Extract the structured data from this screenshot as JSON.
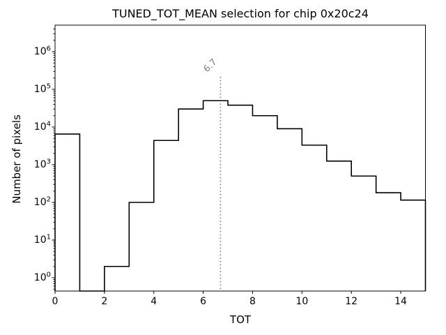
{
  "figure": {
    "background": "#ffffff",
    "text_color": "#000000"
  },
  "chart_data": {
    "type": "bar",
    "subtype": "step-histogram",
    "title": "TUNED_TOT_MEAN selection for chip 0x20c24",
    "xlabel": "TOT",
    "ylabel": "Number of pixels",
    "xlim": [
      0,
      15
    ],
    "yscale": "log",
    "ylim": [
      0.4,
      4500000
    ],
    "grid": false,
    "legend": null,
    "line_color": "#000000",
    "bin_edges": [
      0,
      1,
      2,
      3,
      4,
      5,
      6,
      7,
      8,
      9,
      10,
      11,
      12,
      13,
      14,
      15
    ],
    "counts": [
      6500,
      0,
      2,
      100,
      4400,
      30000,
      50000,
      38000,
      20000,
      9000,
      3300,
      1250,
      500,
      180,
      115
    ],
    "xticks": [
      0,
      2,
      4,
      6,
      8,
      10,
      12,
      14
    ],
    "ytick_exponents": [
      0,
      1,
      2,
      3,
      4,
      5,
      6
    ],
    "vline": {
      "x": 6.7,
      "label": "6.7",
      "color": "#808080",
      "style": "dotted"
    }
  }
}
